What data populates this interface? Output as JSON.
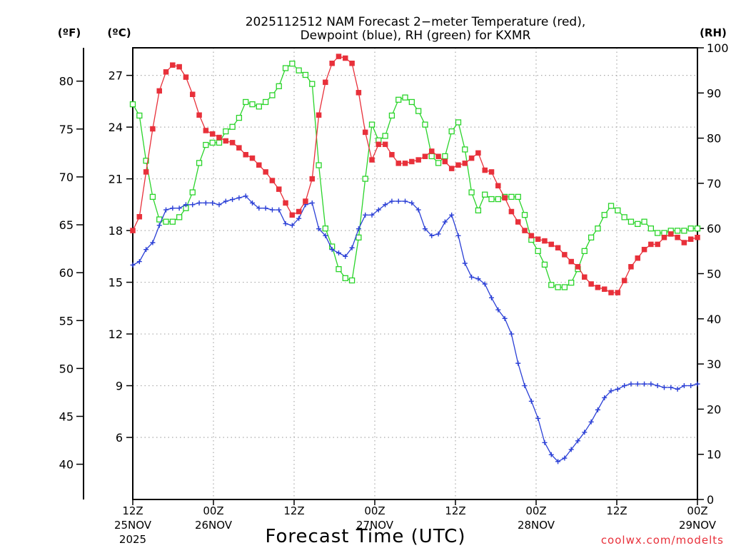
{
  "colors": {
    "temp": "#e8303a",
    "dewpoint": "#2a3fd6",
    "rh": "#2ad42a",
    "grid": "#a9a9a9",
    "credit": "#e8303a"
  },
  "chart_data": {
    "type": "line",
    "title": {
      "line1": "2025112512 NAM Forecast 2−meter Temperature (red),",
      "line2": "Dewpoint (blue), RH (green) for KXMR"
    },
    "xlabel": "Forecast Time (UTC)",
    "x_hours_range": [
      0,
      84
    ],
    "x_ticks": [
      {
        "h": 0,
        "l1": "12Z",
        "l2": "25NOV",
        "l3": "2025"
      },
      {
        "h": 12,
        "l1": "00Z",
        "l2": "26NOV",
        "l3": ""
      },
      {
        "h": 24,
        "l1": "12Z",
        "l2": "",
        "l3": ""
      },
      {
        "h": 36,
        "l1": "00Z",
        "l2": "27NOV",
        "l3": ""
      },
      {
        "h": 48,
        "l1": "12Z",
        "l2": "",
        "l3": ""
      },
      {
        "h": 60,
        "l1": "00Z",
        "l2": "28NOV",
        "l3": ""
      },
      {
        "h": 72,
        "l1": "12Z",
        "l2": "",
        "l3": ""
      },
      {
        "h": 84,
        "l1": "00Z",
        "l2": "29NOV",
        "l3": ""
      }
    ],
    "axes": {
      "f_unit": "(ºF)",
      "c_unit": "(ºC)",
      "rh_unit": "(RH)",
      "c_range": [
        2.4,
        28.6
      ],
      "rh_range": [
        0,
        100
      ],
      "f_ticks": [
        40,
        45,
        50,
        55,
        60,
        65,
        70,
        75,
        80
      ],
      "c_ticks": [
        6,
        9,
        12,
        15,
        18,
        21,
        24,
        27
      ],
      "rh_ticks": [
        0,
        10,
        20,
        30,
        40,
        50,
        60,
        70,
        80,
        90,
        100
      ]
    },
    "series": [
      {
        "name": "Temperature (red)",
        "unit": "C",
        "values": [
          18.0,
          18.8,
          21.4,
          23.9,
          26.1,
          27.2,
          27.6,
          27.5,
          26.9,
          25.9,
          24.7,
          23.8,
          23.6,
          23.4,
          23.2,
          23.1,
          22.8,
          22.4,
          22.2,
          21.8,
          21.4,
          20.9,
          20.4,
          19.6,
          18.9,
          19.1,
          19.7,
          21.0,
          24.7,
          26.6,
          27.7,
          28.1,
          28.0,
          27.7,
          26.0,
          23.7,
          22.1,
          23.0,
          23.0,
          22.4,
          21.9,
          21.9,
          22.0,
          22.1,
          22.3,
          22.6,
          22.3,
          22.0,
          21.6,
          21.8,
          21.9,
          22.2,
          22.5,
          21.5,
          21.4,
          20.6,
          19.9,
          19.1,
          18.5,
          18.0,
          17.7,
          17.5,
          17.4,
          17.2,
          17.0,
          16.6,
          16.2,
          15.9,
          15.3,
          14.9,
          14.7,
          14.6,
          14.4,
          14.4,
          15.1,
          15.9,
          16.4,
          16.9,
          17.2,
          17.2,
          17.6,
          17.8,
          17.6,
          17.3,
          17.5,
          17.6
        ]
      },
      {
        "name": "Dewpoint (blue)",
        "unit": "C",
        "values": [
          16.0,
          16.2,
          16.9,
          17.3,
          18.3,
          19.2,
          19.3,
          19.3,
          19.5,
          19.5,
          19.6,
          19.6,
          19.6,
          19.5,
          19.7,
          19.8,
          19.9,
          20.0,
          19.6,
          19.3,
          19.3,
          19.2,
          19.2,
          18.4,
          18.3,
          18.7,
          19.5,
          19.6,
          18.1,
          17.7,
          16.9,
          16.7,
          16.5,
          17.0,
          18.1,
          18.9,
          18.9,
          19.2,
          19.5,
          19.7,
          19.7,
          19.7,
          19.6,
          19.2,
          18.1,
          17.7,
          17.8,
          18.5,
          18.9,
          17.7,
          16.1,
          15.3,
          15.2,
          14.9,
          14.1,
          13.4,
          12.9,
          12.0,
          10.3,
          9.0,
          8.1,
          7.1,
          5.7,
          5.0,
          4.6,
          4.8,
          5.3,
          5.8,
          6.3,
          6.9,
          7.6,
          8.3,
          8.7,
          8.8,
          9.0,
          9.1,
          9.1,
          9.1,
          9.1,
          9.0,
          8.9,
          8.9,
          8.8,
          9.0,
          9.0,
          9.1
        ]
      },
      {
        "name": "RH (green)",
        "unit": "%",
        "values": [
          87.5,
          85.0,
          75.0,
          67.0,
          62.0,
          61.5,
          61.5,
          62.5,
          64.5,
          68.0,
          74.5,
          78.5,
          79.0,
          79.0,
          81.5,
          82.5,
          84.5,
          88.0,
          87.5,
          87.0,
          88.0,
          89.5,
          91.5,
          95.5,
          96.5,
          95.0,
          94.0,
          92.0,
          74.0,
          60.0,
          56.0,
          51.0,
          49.0,
          48.5,
          58.0,
          71.0,
          83.0,
          79.5,
          80.5,
          85.0,
          88.5,
          89.0,
          88.0,
          86.0,
          83.0,
          76.0,
          74.5,
          76.0,
          81.5,
          83.5,
          77.5,
          68.0,
          64.0,
          67.5,
          66.5,
          66.5,
          67.0,
          67.0,
          67.0,
          63.0,
          57.5,
          55.0,
          52.0,
          47.5,
          47.0,
          47.0,
          48.0,
          51.0,
          55.0,
          58.0,
          60.0,
          63.0,
          65.0,
          64.0,
          62.5,
          61.5,
          61.0,
          61.5,
          60.0,
          59.0,
          59.0,
          59.5,
          59.5,
          59.5,
          60.0,
          60.0
        ]
      }
    ],
    "credit": "coolwx.com/modelts"
  }
}
